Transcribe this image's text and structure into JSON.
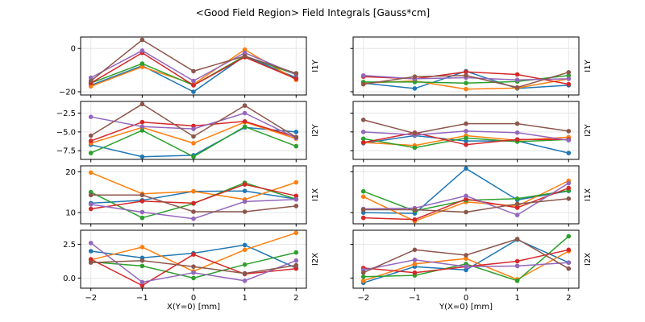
{
  "title": "<Good Field Region> Field Integrals [Gauss*cm]",
  "x_axis": {
    "left_label": "X(Y=0) [mm]",
    "right_label": "Y(X=0) [mm]",
    "tick_values": [
      -2,
      -1,
      0,
      1,
      2
    ],
    "tick_labels": [
      "−2",
      "−1",
      "0",
      "1",
      "2"
    ],
    "xlim": [
      -2.2,
      2.2
    ]
  },
  "rows": [
    {
      "label": "I1Y",
      "ylim": [
        -21.5,
        5.3
      ],
      "ytick_values": [
        0,
        -20
      ],
      "ytick_labels": [
        "0",
        "−20"
      ]
    },
    {
      "label": "I2Y",
      "ylim": [
        -8.65,
        -0.95
      ],
      "ytick_values": [
        -2.5,
        -5.0,
        -7.5
      ],
      "ytick_labels": [
        "−2.5",
        "−5.0",
        "−7.5"
      ]
    },
    {
      "label": "I1X",
      "ylim": [
        7.25,
        21.45
      ],
      "ytick_values": [
        20,
        10
      ],
      "ytick_labels": [
        "20",
        "10"
      ]
    },
    {
      "label": "I2X",
      "ylim": [
        -0.75,
        3.55
      ],
      "ytick_values": [
        2.5,
        0.0
      ],
      "ytick_labels": [
        "2.5",
        "0.0"
      ]
    }
  ],
  "style": {
    "grid_color": "#e6e6e6",
    "spine_color": "#000000",
    "text_color": "#000000",
    "series_colors": {
      "blue": "#1f77b4",
      "orange": "#ff7f0e",
      "green": "#2ca02c",
      "red": "#d62728",
      "purple": "#9467bd",
      "brown": "#8c564b"
    }
  },
  "chart_data": [
    {
      "type": "line",
      "row": 0,
      "col": 0,
      "ylabel": "I1Y",
      "x": [
        -2,
        -1,
        0,
        1,
        2
      ],
      "series": [
        {
          "name": "blue",
          "color": "#1f77b4",
          "values": [
            -17,
            -8,
            -20,
            -3.5,
            -13.5
          ]
        },
        {
          "name": "orange",
          "color": "#ff7f0e",
          "values": [
            -17.5,
            -8.5,
            -16.5,
            -0.5,
            -14.5
          ]
        },
        {
          "name": "green",
          "color": "#2ca02c",
          "values": [
            -16,
            -7,
            -17,
            -3.5,
            -12
          ]
        },
        {
          "name": "red",
          "color": "#d62728",
          "values": [
            -16,
            -2,
            -17,
            -4,
            -14
          ]
        },
        {
          "name": "purple",
          "color": "#9467bd",
          "values": [
            -13.5,
            -1,
            -15,
            -2,
            -12
          ]
        },
        {
          "name": "brown",
          "color": "#8c564b",
          "values": [
            -15,
            4,
            -10.5,
            -3.5,
            -11.5
          ]
        }
      ]
    },
    {
      "type": "line",
      "row": 0,
      "col": 1,
      "ylabel": "I1Y",
      "x": [
        -2,
        -1,
        0,
        1,
        2
      ],
      "series": [
        {
          "name": "blue",
          "color": "#1f77b4",
          "values": [
            -16,
            -18.5,
            -10.5,
            -18.5,
            -17
          ]
        },
        {
          "name": "orange",
          "color": "#ff7f0e",
          "values": [
            -16,
            -15,
            -18.8,
            -18.3,
            -14
          ]
        },
        {
          "name": "green",
          "color": "#2ca02c",
          "values": [
            -15.5,
            -15.5,
            -16,
            -15.3,
            -12.5
          ]
        },
        {
          "name": "red",
          "color": "#d62728",
          "values": [
            -13,
            -14,
            -10.8,
            -12,
            -16.5
          ]
        },
        {
          "name": "purple",
          "color": "#9467bd",
          "values": [
            -12.5,
            -14,
            -13.5,
            -14.5,
            -14
          ]
        },
        {
          "name": "brown",
          "color": "#8c564b",
          "values": [
            -16.5,
            -13,
            -12.5,
            -18,
            -11
          ]
        }
      ]
    },
    {
      "type": "line",
      "row": 1,
      "col": 0,
      "ylabel": "I2Y",
      "x": [
        -2,
        -1,
        0,
        1,
        2
      ],
      "series": [
        {
          "name": "blue",
          "color": "#1f77b4",
          "values": [
            -6.7,
            -8.3,
            -8.1,
            -4.4,
            -5.0
          ]
        },
        {
          "name": "orange",
          "color": "#ff7f0e",
          "values": [
            -6.5,
            -4.4,
            -6.5,
            -3.7,
            -5.9
          ]
        },
        {
          "name": "green",
          "color": "#2ca02c",
          "values": [
            -7.8,
            -4.8,
            -8.3,
            -4.3,
            -6.9
          ]
        },
        {
          "name": "red",
          "color": "#d62728",
          "values": [
            -6.2,
            -3.7,
            -4.2,
            -3.6,
            -5.7
          ]
        },
        {
          "name": "purple",
          "color": "#9467bd",
          "values": [
            -3.0,
            -4.3,
            -4.6,
            -2.5,
            -5.8
          ]
        },
        {
          "name": "brown",
          "color": "#8c564b",
          "values": [
            -5.5,
            -1.3,
            -5.6,
            -1.5,
            -5.7
          ]
        }
      ]
    },
    {
      "type": "line",
      "row": 1,
      "col": 1,
      "ylabel": "I2Y",
      "x": [
        -2,
        -1,
        0,
        1,
        2
      ],
      "series": [
        {
          "name": "blue",
          "color": "#1f77b4",
          "values": [
            -6.5,
            -5.5,
            -6.2,
            -6.2,
            -7.8
          ]
        },
        {
          "name": "orange",
          "color": "#ff7f0e",
          "values": [
            -6.4,
            -6.8,
            -5.5,
            -6.1,
            -5.7
          ]
        },
        {
          "name": "green",
          "color": "#2ca02c",
          "values": [
            -5.9,
            -7.1,
            -5.8,
            -6.3,
            -6.0
          ]
        },
        {
          "name": "red",
          "color": "#d62728",
          "values": [
            -6.4,
            -5.1,
            -6.7,
            -6.0,
            -6.0
          ]
        },
        {
          "name": "purple",
          "color": "#9467bd",
          "values": [
            -5.0,
            -5.4,
            -4.9,
            -5.1,
            -6.1
          ]
        },
        {
          "name": "brown",
          "color": "#8c564b",
          "values": [
            -3.4,
            -5.2,
            -3.9,
            -3.9,
            -4.9
          ]
        }
      ]
    },
    {
      "type": "line",
      "row": 2,
      "col": 0,
      "ylabel": "I1X",
      "x": [
        -2,
        -1,
        0,
        1,
        2
      ],
      "series": [
        {
          "name": "blue",
          "color": "#1f77b4",
          "values": [
            12.3,
            13.0,
            15.2,
            15.3,
            13.3
          ]
        },
        {
          "name": "orange",
          "color": "#ff7f0e",
          "values": [
            19.8,
            14.6,
            15.2,
            13.2,
            17.4
          ]
        },
        {
          "name": "green",
          "color": "#2ca02c",
          "values": [
            15.0,
            8.7,
            12.2,
            17.3,
            13.3
          ]
        },
        {
          "name": "red",
          "color": "#d62728",
          "values": [
            10.9,
            12.8,
            12.3,
            16.9,
            14.1
          ]
        },
        {
          "name": "purple",
          "color": "#9467bd",
          "values": [
            12.0,
            10.1,
            8.5,
            12.7,
            13.2
          ]
        },
        {
          "name": "brown",
          "color": "#8c564b",
          "values": [
            14.3,
            14.3,
            10.2,
            10.2,
            11.6
          ]
        }
      ]
    },
    {
      "type": "line",
      "row": 2,
      "col": 1,
      "ylabel": "I1X",
      "x": [
        -2,
        -1,
        0,
        1,
        2
      ],
      "series": [
        {
          "name": "blue",
          "color": "#1f77b4",
          "values": [
            10.0,
            9.8,
            20.8,
            13.1,
            15.3
          ]
        },
        {
          "name": "orange",
          "color": "#ff7f0e",
          "values": [
            13.9,
            7.9,
            12.6,
            11.6,
            17.8
          ]
        },
        {
          "name": "green",
          "color": "#2ca02c",
          "values": [
            15.2,
            10.4,
            13.0,
            13.4,
            15.4
          ]
        },
        {
          "name": "red",
          "color": "#d62728",
          "values": [
            8.7,
            8.3,
            13.3,
            11.2,
            16.0
          ]
        },
        {
          "name": "purple",
          "color": "#9467bd",
          "values": [
            10.9,
            11.1,
            14.1,
            9.4,
            17.2
          ]
        },
        {
          "name": "brown",
          "color": "#8c564b",
          "values": [
            10.7,
            10.7,
            10.1,
            12.1,
            13.4
          ]
        }
      ]
    },
    {
      "type": "line",
      "row": 3,
      "col": 0,
      "ylabel": "I2X",
      "x": [
        -2,
        -1,
        0,
        1,
        2
      ],
      "series": [
        {
          "name": "blue",
          "color": "#1f77b4",
          "values": [
            2.0,
            1.5,
            1.85,
            2.45,
            0.75
          ]
        },
        {
          "name": "orange",
          "color": "#ff7f0e",
          "values": [
            1.35,
            2.3,
            0.5,
            2.1,
            3.35
          ]
        },
        {
          "name": "green",
          "color": "#2ca02c",
          "values": [
            1.2,
            0.9,
            0.0,
            1.0,
            1.9
          ]
        },
        {
          "name": "red",
          "color": "#d62728",
          "values": [
            1.4,
            -0.55,
            1.75,
            0.3,
            0.7
          ]
        },
        {
          "name": "purple",
          "color": "#9467bd",
          "values": [
            2.6,
            -0.3,
            0.4,
            -0.2,
            1.3
          ]
        },
        {
          "name": "brown",
          "color": "#8c564b",
          "values": [
            1.15,
            1.3,
            0.85,
            0.35,
            0.95
          ]
        }
      ]
    },
    {
      "type": "line",
      "row": 3,
      "col": 1,
      "ylabel": "I2X",
      "x": [
        -2,
        -1,
        0,
        1,
        2
      ],
      "series": [
        {
          "name": "blue",
          "color": "#1f77b4",
          "values": [
            -0.35,
            0.85,
            0.6,
            2.85,
            1.15
          ]
        },
        {
          "name": "orange",
          "color": "#ff7f0e",
          "values": [
            -0.2,
            1.05,
            1.45,
            -0.1,
            2.0
          ]
        },
        {
          "name": "green",
          "color": "#2ca02c",
          "values": [
            0.1,
            0.2,
            1.05,
            -0.2,
            3.1
          ]
        },
        {
          "name": "red",
          "color": "#d62728",
          "values": [
            0.75,
            0.4,
            0.85,
            1.25,
            2.1
          ]
        },
        {
          "name": "purple",
          "color": "#9467bd",
          "values": [
            0.6,
            1.35,
            0.85,
            0.9,
            1.15
          ]
        },
        {
          "name": "brown",
          "color": "#8c564b",
          "values": [
            0.4,
            2.1,
            1.7,
            2.9,
            0.7
          ]
        }
      ]
    }
  ]
}
